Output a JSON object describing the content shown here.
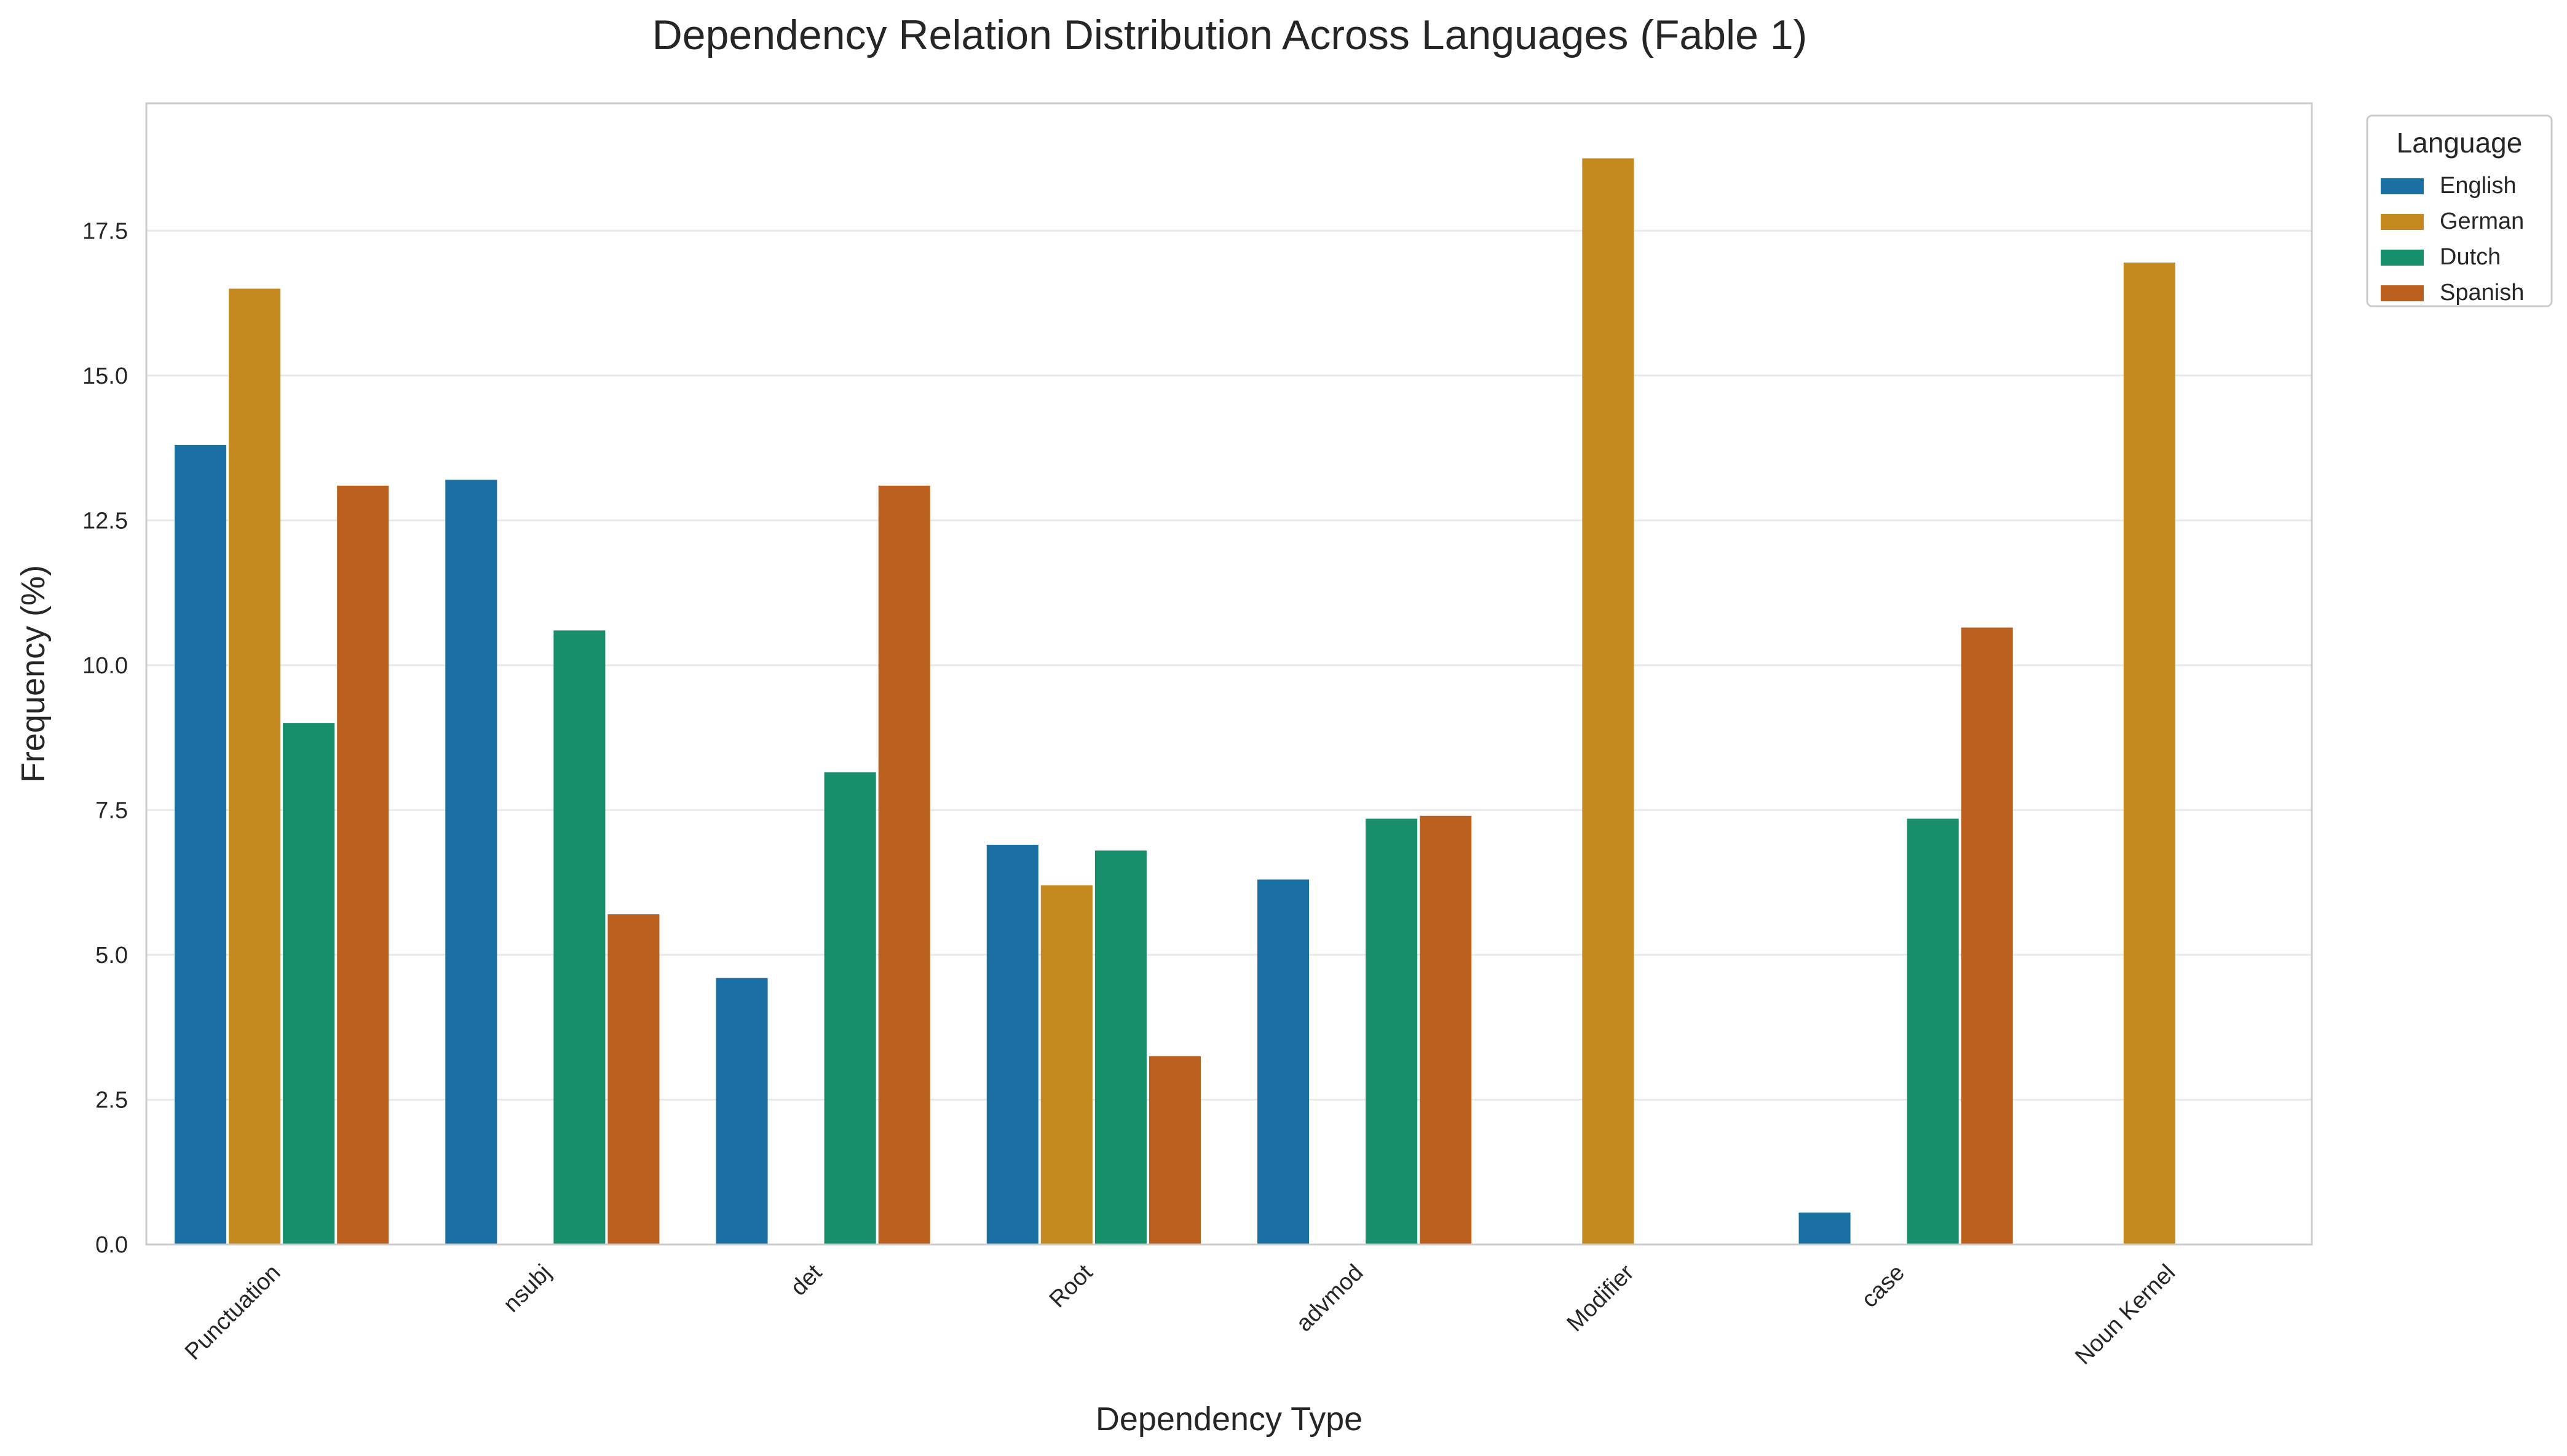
{
  "chart_data": {
    "type": "bar",
    "title": "Dependency Relation Distribution Across Languages (Fable 1)",
    "xlabel": "Dependency Type",
    "ylabel": "Frequency (%)",
    "ylim": [
      0,
      19.7
    ],
    "yticks": [
      0.0,
      2.5,
      5.0,
      7.5,
      10.0,
      12.5,
      15.0,
      17.5
    ],
    "ytick_labels": [
      "0.0",
      "2.5",
      "5.0",
      "7.5",
      "10.0",
      "12.5",
      "15.0",
      "17.5"
    ],
    "grid": "horizontal",
    "legend_position": "outside-top-right",
    "legend_title": "Language",
    "categories": [
      "Punctuation",
      "nsubj",
      "det",
      "Root",
      "advmod",
      "Modifier",
      "case",
      "Noun Kernel"
    ],
    "series": [
      {
        "name": "English",
        "color": "#1a6fa3",
        "values": [
          13.8,
          13.2,
          4.6,
          6.9,
          6.3,
          null,
          0.55,
          null
        ]
      },
      {
        "name": "German",
        "color": "#c4891f",
        "values": [
          16.5,
          null,
          null,
          6.2,
          null,
          18.75,
          null,
          16.95
        ]
      },
      {
        "name": "Dutch",
        "color": "#178f6b",
        "values": [
          9.0,
          10.6,
          8.15,
          6.8,
          7.35,
          null,
          7.35,
          null
        ]
      },
      {
        "name": "Spanish",
        "color": "#ba5f1e",
        "values": [
          13.1,
          5.7,
          13.1,
          3.25,
          7.4,
          null,
          10.65,
          null
        ]
      }
    ]
  }
}
